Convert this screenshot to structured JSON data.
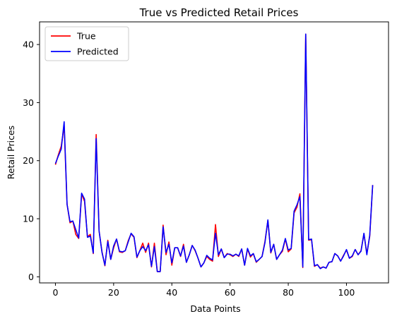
{
  "chart_data": {
    "type": "line",
    "title": "True vs Predicted Retail Prices",
    "xlabel": "Data Points",
    "ylabel": "Retail Prices",
    "xlim": [
      -5.45,
      114.45
    ],
    "ylim": [
      -1.05,
      43.9
    ],
    "xticks": [
      0,
      20,
      40,
      60,
      80,
      100
    ],
    "yticks": [
      0,
      10,
      20,
      30,
      40
    ],
    "grid": false,
    "legend_position": "upper-left",
    "series": [
      {
        "name": "True",
        "color": "#ff0000",
        "values": [
          19.3,
          21.0,
          22.5,
          26.0,
          12.5,
          9.3,
          9.6,
          7.3,
          6.6,
          14.2,
          13.0,
          6.9,
          7.3,
          4.0,
          24.5,
          7.9,
          4.3,
          1.9,
          6.3,
          3.0,
          5.0,
          6.5,
          4.3,
          4.2,
          4.5,
          6.2,
          7.4,
          6.8,
          3.3,
          4.5,
          5.8,
          4.2,
          5.8,
          1.7,
          5.8,
          0.9,
          0.9,
          8.9,
          3.8,
          6.0,
          2.0,
          5.0,
          5.0,
          3.5,
          5.6,
          2.5,
          3.8,
          5.4,
          4.5,
          3.2,
          1.7,
          2.4,
          3.5,
          3.0,
          2.7,
          9.0,
          3.5,
          4.8,
          3.3,
          4.0,
          3.8,
          3.5,
          3.9,
          3.5,
          4.8,
          2.0,
          4.8,
          3.4,
          4.0,
          2.5,
          3.0,
          3.5,
          6.1,
          9.7,
          4.1,
          5.6,
          3.0,
          3.8,
          4.4,
          6.5,
          4.3,
          4.8,
          11.0,
          12.0,
          14.3,
          1.6,
          41.8,
          6.3,
          6.4,
          1.8,
          2.1,
          1.5,
          1.7,
          1.5,
          2.5,
          2.6,
          4.0,
          3.6,
          2.7,
          3.7,
          4.6,
          3.2,
          3.5,
          4.7,
          3.8,
          4.5,
          7.4,
          4.0,
          7.0,
          15.8
        ]
      },
      {
        "name": "Predicted",
        "color": "#0000ff",
        "values": [
          19.5,
          20.8,
          22.0,
          26.7,
          12.5,
          9.5,
          9.6,
          8.1,
          6.7,
          14.4,
          13.4,
          6.8,
          7.0,
          4.1,
          23.8,
          7.9,
          4.2,
          2.0,
          6.1,
          3.0,
          5.3,
          6.5,
          4.4,
          4.3,
          4.5,
          6.0,
          7.5,
          6.9,
          3.4,
          4.5,
          5.2,
          4.5,
          5.5,
          1.8,
          5.2,
          0.9,
          0.9,
          8.6,
          4.2,
          5.6,
          2.4,
          5.0,
          5.0,
          3.6,
          5.3,
          2.5,
          3.8,
          5.4,
          4.6,
          3.2,
          1.7,
          2.4,
          3.7,
          3.2,
          2.9,
          7.5,
          3.8,
          4.8,
          3.3,
          3.9,
          3.9,
          3.6,
          3.9,
          3.6,
          4.8,
          2.0,
          4.9,
          3.6,
          4.0,
          2.6,
          3.0,
          3.5,
          5.9,
          9.8,
          4.2,
          5.6,
          3.0,
          3.8,
          4.6,
          6.6,
          4.6,
          4.9,
          11.3,
          12.4,
          13.8,
          1.7,
          41.8,
          6.4,
          6.5,
          1.9,
          2.1,
          1.4,
          1.7,
          1.5,
          2.5,
          2.6,
          4.0,
          3.6,
          2.7,
          3.6,
          4.7,
          3.2,
          3.6,
          4.7,
          3.8,
          4.4,
          7.5,
          3.8,
          7.2,
          15.8
        ]
      }
    ]
  }
}
